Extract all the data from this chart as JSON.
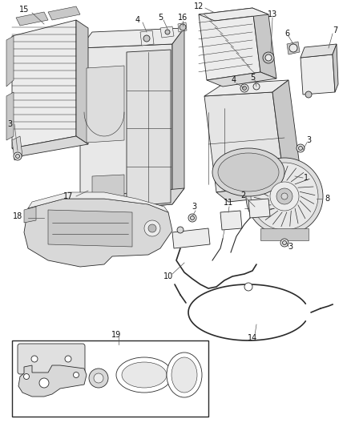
{
  "bg_color": "#ffffff",
  "line_color": "#2a2a2a",
  "fig_width": 4.38,
  "fig_height": 5.33,
  "dpi": 100,
  "label_fontsize": 7.0,
  "label_color": "#111111"
}
